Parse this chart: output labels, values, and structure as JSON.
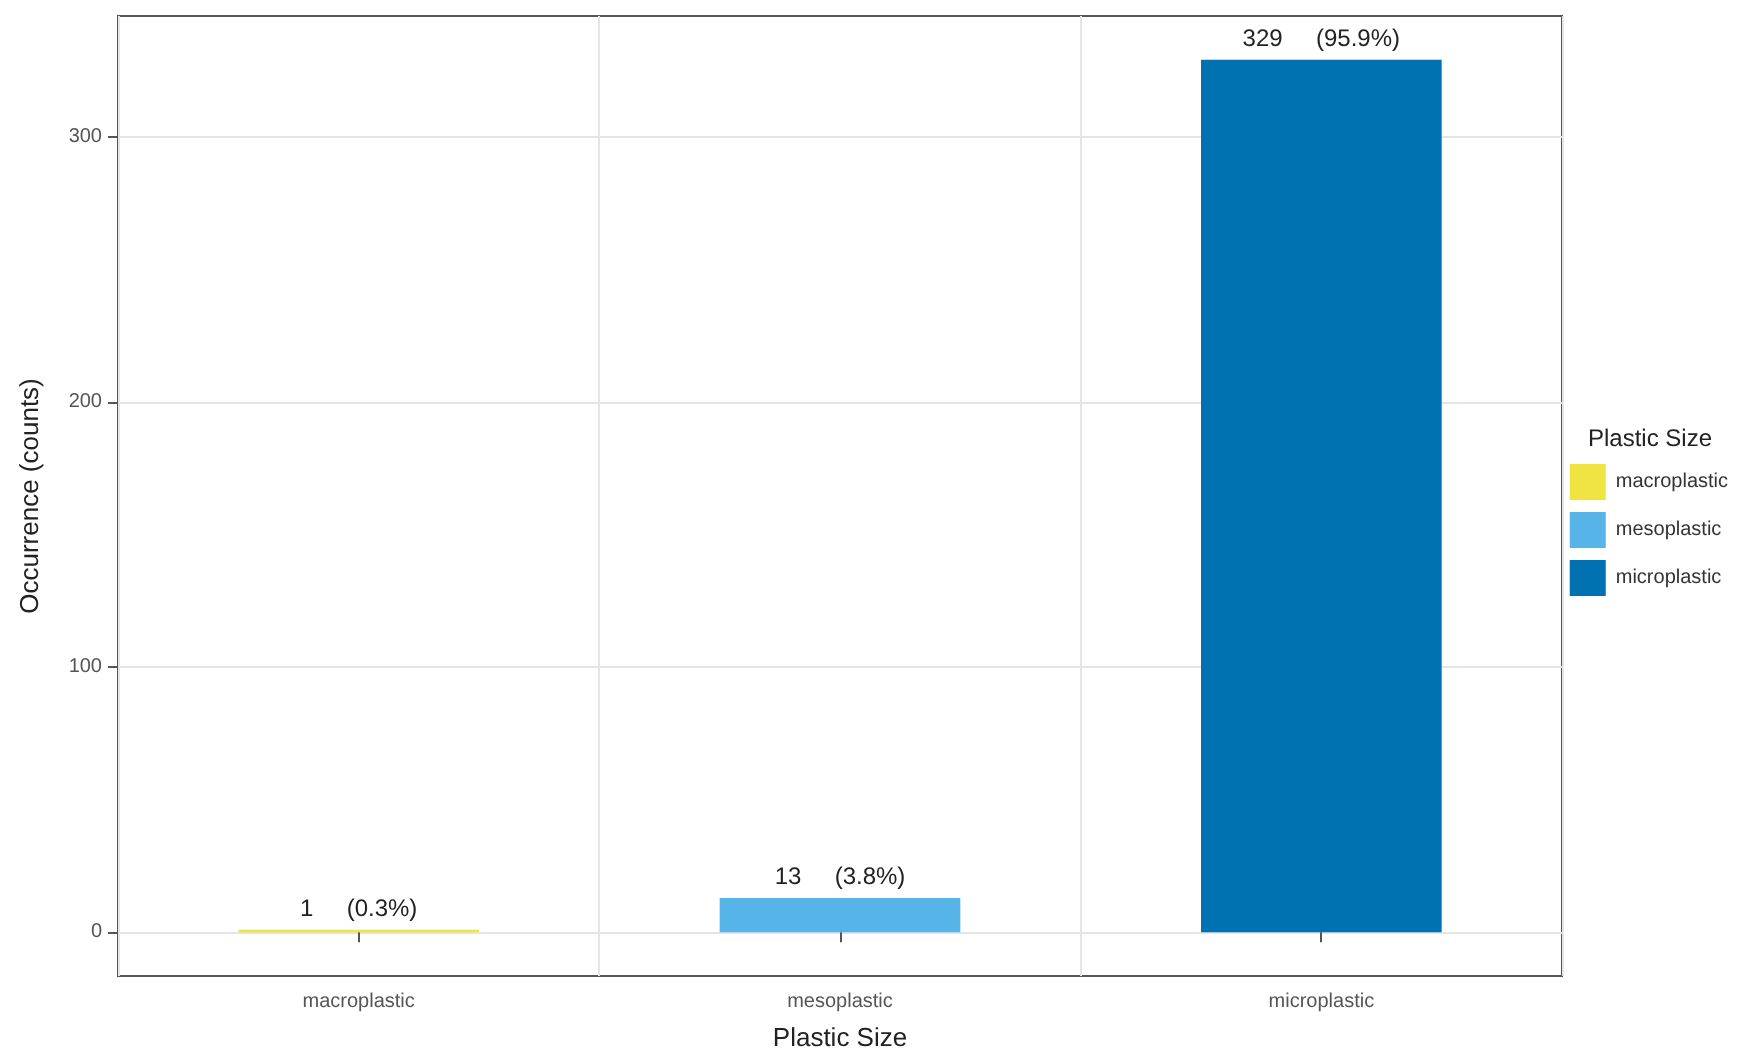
{
  "chart_data": {
    "type": "bar",
    "xlabel": "Plastic Size",
    "ylabel": "Occurrence (counts)",
    "legend_title": "Plastic Size",
    "categories": [
      "macroplastic",
      "mesoplastic",
      "microplastic"
    ],
    "series": [
      {
        "name": "macroplastic",
        "color": "#f0e442",
        "values": [
          1,
          null,
          null
        ],
        "value_labels": [
          "1     (0.3%)",
          null,
          null
        ]
      },
      {
        "name": "mesoplastic",
        "color": "#56b4e9",
        "values": [
          null,
          13,
          null
        ],
        "value_labels": [
          null,
          "13     (3.8%)",
          null
        ]
      },
      {
        "name": "microplastic",
        "color": "#0072b2",
        "values": [
          null,
          null,
          329
        ],
        "value_labels": [
          null,
          null,
          "329     (95.9%)"
        ]
      }
    ],
    "ylim": [
      -16.45,
      345.45
    ],
    "yticks": [
      0,
      100,
      200,
      300
    ],
    "grid": true,
    "legend": "right"
  }
}
